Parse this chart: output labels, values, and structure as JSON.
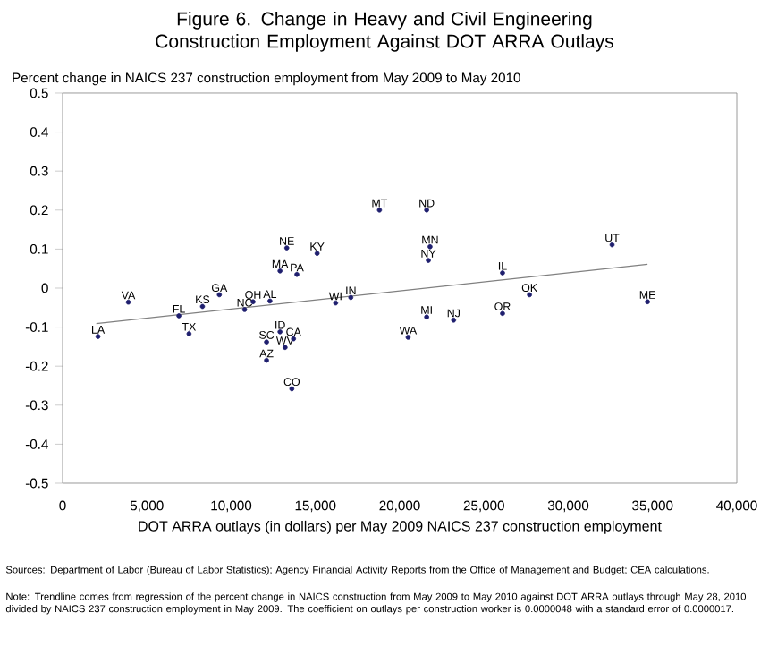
{
  "chart_data": {
    "type": "scatter",
    "title": "Figure 6. Change in Heavy and Civil Engineering Construction Employment Against  DOT ARRA Outlays",
    "ylabel": "Percent change in NAICS 237 construction employment from May 2009 to May 2010",
    "xlabel": "DOT ARRA outlays (in dollars) per May 2009 NAICS 237 construction employment",
    "xlim": [
      0,
      40000
    ],
    "xticks": [
      0,
      {
        "value": 5000,
        "label": "5,000"
      },
      {
        "value": 10000,
        "label": "10,000"
      },
      {
        "value": 15000,
        "label": "15,000"
      },
      {
        "value": 20000,
        "label": "20,000"
      },
      {
        "value": 25000,
        "label": "25,000"
      },
      {
        "value": 30000,
        "label": "30,000"
      },
      {
        "value": 35000,
        "label": "35,000"
      },
      {
        "value": 40000,
        "label": "40,000"
      }
    ],
    "ylim": [
      -0.5,
      0.5
    ],
    "yticks": [
      -0.5,
      -0.4,
      -0.3,
      -0.2,
      -0.1,
      0,
      0.1,
      0.2,
      0.3,
      0.4,
      0.5
    ],
    "grid": false,
    "series": [
      {
        "marker": "circle",
        "color": "#1f1f6e",
        "x": [
          2100,
          3900,
          6900,
          7500,
          8300,
          9300,
          10800,
          11300,
          12300,
          12900,
          13900,
          13300,
          15100,
          12100,
          12900,
          13700,
          13200,
          12100,
          13600,
          16200,
          17100,
          18800,
          21600,
          21800,
          21700,
          26100,
          32600,
          27700,
          34700,
          26100,
          21600,
          23200,
          20500
        ],
        "values": [
          -0.124,
          -0.036,
          -0.071,
          -0.117,
          -0.047,
          -0.017,
          -0.055,
          -0.035,
          -0.033,
          0.044,
          0.035,
          0.103,
          0.089,
          -0.138,
          -0.112,
          -0.13,
          -0.152,
          -0.185,
          -0.258,
          -0.038,
          -0.024,
          0.2,
          0.2,
          0.106,
          0.071,
          0.039,
          0.111,
          -0.017,
          -0.035,
          -0.065,
          -0.074,
          -0.082,
          -0.126
        ]
      },
      {
        "type": "line",
        "color": "#808080",
        "x": [
          2000,
          34700
        ],
        "values": [
          -0.091,
          0.061
        ]
      }
    ],
    "annotations": [
      {
        "text": "LA",
        "x": 2100,
        "y": -0.124
      },
      {
        "text": "VA",
        "x": 3900,
        "y": -0.036
      },
      {
        "text": "FL",
        "x": 6900,
        "y": -0.071
      },
      {
        "text": "TX",
        "x": 7500,
        "y": -0.117
      },
      {
        "text": "KS",
        "x": 8300,
        "y": -0.047
      },
      {
        "text": "GA",
        "x": 9300,
        "y": -0.017
      },
      {
        "text": "NC",
        "x": 10800,
        "y": -0.055
      },
      {
        "text": "OH",
        "x": 11300,
        "y": -0.035
      },
      {
        "text": "AL",
        "x": 12300,
        "y": -0.033
      },
      {
        "text": "MA",
        "x": 12900,
        "y": 0.044
      },
      {
        "text": "PA",
        "x": 13900,
        "y": 0.035
      },
      {
        "text": "NE",
        "x": 13300,
        "y": 0.103
      },
      {
        "text": "KY",
        "x": 15100,
        "y": 0.089
      },
      {
        "text": "SC",
        "x": 12100,
        "y": -0.138
      },
      {
        "text": "ID",
        "x": 12900,
        "y": -0.112
      },
      {
        "text": "CA",
        "x": 13700,
        "y": -0.13
      },
      {
        "text": "WV",
        "x": 13200,
        "y": -0.152
      },
      {
        "text": "AZ",
        "x": 12100,
        "y": -0.185
      },
      {
        "text": "CO",
        "x": 13600,
        "y": -0.258
      },
      {
        "text": "WI",
        "x": 16200,
        "y": -0.038
      },
      {
        "text": "IN",
        "x": 17100,
        "y": -0.024
      },
      {
        "text": "MT",
        "x": 18800,
        "y": 0.2
      },
      {
        "text": "ND",
        "x": 21600,
        "y": 0.2
      },
      {
        "text": "MN",
        "x": 21800,
        "y": 0.106
      },
      {
        "text": "NY",
        "x": 21700,
        "y": 0.071
      },
      {
        "text": "IL",
        "x": 26100,
        "y": 0.039
      },
      {
        "text": "UT",
        "x": 32600,
        "y": 0.111
      },
      {
        "text": "OK",
        "x": 27700,
        "y": -0.017
      },
      {
        "text": "ME",
        "x": 34700,
        "y": -0.035
      },
      {
        "text": "OR",
        "x": 26100,
        "y": -0.065
      },
      {
        "text": "MI",
        "x": 21600,
        "y": -0.074
      },
      {
        "text": "NJ",
        "x": 23200,
        "y": -0.082
      },
      {
        "text": "WA",
        "x": 20500,
        "y": -0.126
      },
      "Sources:  Department of Labor (Bureau of Labor Statistics); Agency Financial Activity Reports from the Office of Management and Budget; CEA calculations.",
      "Note: Trendline comes from regression of the percent change in NAICS construction from May 2009 to May 2010 against DOT ARRA outlays through May 28, 2010 divided by NAICS 237 construction employment in May 2009.  The coefficient on outlays per construction worker is 0.0000048 with a standard error of 0.0000017."
    ]
  }
}
